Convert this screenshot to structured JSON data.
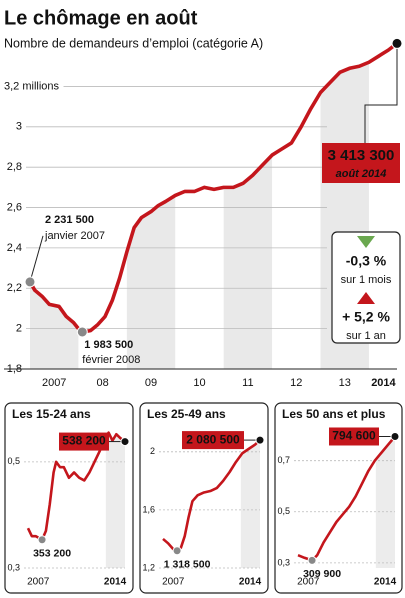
{
  "chart_data": [
    {
      "type": "line",
      "title": "Le chômage en août",
      "subtitle": "Nombre de demandeurs d’emploi (catégorie A)",
      "color": "#c4161c",
      "grid": true,
      "xlim": [
        2007,
        2014.58
      ],
      "ylim": [
        1.8,
        3.45
      ],
      "xticks": [
        {
          "value": 2007.5,
          "label": "2007"
        },
        {
          "value": 2008.5,
          "label": "08"
        },
        {
          "value": 2009.5,
          "label": "09"
        },
        {
          "value": 2010.5,
          "label": "10"
        },
        {
          "value": 2011.5,
          "label": "11"
        },
        {
          "value": 2012.5,
          "label": "12"
        },
        {
          "value": 2013.5,
          "label": "13"
        },
        {
          "value": 2014.3,
          "label": "2014"
        }
      ],
      "yticks": [
        {
          "value": 1.8,
          "label": "1,8"
        },
        2,
        {
          "value": 2.2,
          "label": "2,2"
        },
        {
          "value": 2.4,
          "label": "2,4"
        },
        {
          "value": 2.6,
          "label": "2,6"
        },
        {
          "value": 2.8,
          "label": "2,8"
        },
        3,
        {
          "value": 3.2,
          "label": "3,2 millions"
        }
      ],
      "x": [
        2007.0,
        2007.1,
        2007.25,
        2007.4,
        2007.6,
        2007.75,
        2007.9,
        2008.0,
        2008.08,
        2008.25,
        2008.4,
        2008.55,
        2008.7,
        2008.85,
        2009.0,
        2009.15,
        2009.3,
        2009.5,
        2009.65,
        2009.8,
        2010.0,
        2010.2,
        2010.4,
        2010.6,
        2010.8,
        2011.0,
        2011.2,
        2011.4,
        2011.6,
        2011.8,
        2012.0,
        2012.2,
        2012.4,
        2012.6,
        2012.8,
        2013.0,
        2013.2,
        2013.4,
        2013.6,
        2013.8,
        2014.0,
        2014.2,
        2014.4,
        2014.58
      ],
      "values": [
        2.2315,
        2.19,
        2.16,
        2.12,
        2.11,
        2.06,
        2.03,
        2.0,
        1.9835,
        1.99,
        2.02,
        2.06,
        2.14,
        2.25,
        2.38,
        2.5,
        2.55,
        2.58,
        2.61,
        2.63,
        2.66,
        2.68,
        2.68,
        2.7,
        2.69,
        2.7,
        2.7,
        2.72,
        2.76,
        2.81,
        2.86,
        2.89,
        2.92,
        3.0,
        3.09,
        3.17,
        3.22,
        3.27,
        3.29,
        3.3,
        3.32,
        3.35,
        3.38,
        3.4133
      ],
      "value_labels": [
        "2 231 500",
        null,
        null,
        null,
        null,
        null,
        null,
        null,
        "1 983 500",
        null,
        null,
        null,
        null,
        null,
        null,
        null,
        null,
        null,
        null,
        null,
        null,
        null,
        null,
        null,
        null,
        null,
        null,
        null,
        null,
        null,
        null,
        null,
        null,
        null,
        null,
        null,
        null,
        null,
        null,
        null,
        null,
        null,
        null,
        "3 413 300"
      ],
      "date_labels": [
        "janvier 2007",
        null,
        null,
        null,
        null,
        null,
        null,
        null,
        "février 2008",
        null,
        null,
        null,
        null,
        null,
        null,
        null,
        null,
        null,
        null,
        null,
        null,
        null,
        null,
        null,
        null,
        null,
        null,
        null,
        null,
        null,
        null,
        null,
        null,
        null,
        null,
        null,
        null,
        null,
        null,
        null,
        null,
        null,
        null,
        "août 2014"
      ],
      "changes": [
        {
          "value": -0.3,
          "label": "-0,3 %",
          "period": "sur 1 mois",
          "color": "#6aa84f"
        },
        {
          "value": 5.2,
          "label": "+ 5,2 %",
          "period": "sur 1 an",
          "color": "#c4161c"
        }
      ]
    },
    {
      "type": "line",
      "title": "Les 15-24 ans",
      "color": "#c4161c",
      "grid": true,
      "xlim": [
        2007,
        2014.58
      ],
      "ylim": [
        0.3,
        0.56
      ],
      "xticks": [
        {
          "value": 2007.8,
          "label": "2007"
        },
        {
          "value": 2013.8,
          "label": "2014"
        }
      ],
      "yticks": [
        {
          "value": 0.3,
          "label": "0,3"
        },
        {
          "value": 0.5,
          "label": "0,5"
        }
      ],
      "x": [
        2007.0,
        2007.3,
        2007.6,
        2008.1,
        2008.4,
        2008.7,
        2009.0,
        2009.2,
        2009.5,
        2009.8,
        2010.2,
        2010.6,
        2011.0,
        2011.4,
        2011.8,
        2012.2,
        2012.6,
        2013.0,
        2013.3,
        2013.6,
        2013.9,
        2014.2,
        2014.58
      ],
      "values": [
        0.375,
        0.36,
        0.36,
        0.3532,
        0.37,
        0.42,
        0.48,
        0.5,
        0.49,
        0.49,
        0.47,
        0.48,
        0.47,
        0.465,
        0.48,
        0.5,
        0.52,
        0.545,
        0.555,
        0.54,
        0.552,
        0.545,
        0.5382
      ],
      "value_labels": [
        null,
        null,
        null,
        "353 200",
        null,
        null,
        null,
        null,
        null,
        null,
        null,
        null,
        null,
        null,
        null,
        null,
        null,
        null,
        null,
        null,
        null,
        null,
        "538 200"
      ]
    },
    {
      "type": "line",
      "title": "Les 25-49 ans",
      "color": "#c4161c",
      "grid": true,
      "xlim": [
        2007,
        2014.58
      ],
      "ylim": [
        1.2,
        2.15
      ],
      "xticks": [
        {
          "value": 2007.8,
          "label": "2007"
        },
        {
          "value": 2013.8,
          "label": "2014"
        }
      ],
      "yticks": [
        {
          "value": 1.2,
          "label": "1,2"
        },
        {
          "value": 1.6,
          "label": "1,6"
        },
        2
      ],
      "x": [
        2007.0,
        2007.4,
        2007.8,
        2008.1,
        2008.4,
        2008.7,
        2009.0,
        2009.3,
        2009.7,
        2010.2,
        2010.7,
        2011.2,
        2011.7,
        2012.2,
        2012.7,
        2013.2,
        2013.7,
        2014.2,
        2014.58
      ],
      "values": [
        1.4,
        1.37,
        1.33,
        1.3185,
        1.34,
        1.42,
        1.55,
        1.66,
        1.7,
        1.72,
        1.73,
        1.75,
        1.8,
        1.86,
        1.93,
        1.99,
        2.02,
        2.05,
        2.0805
      ],
      "value_labels": [
        null,
        null,
        null,
        "1 318 500",
        null,
        null,
        null,
        null,
        null,
        null,
        null,
        null,
        null,
        null,
        null,
        null,
        null,
        null,
        "2 080 500"
      ]
    },
    {
      "type": "line",
      "title": "Les 50 ans et plus",
      "color": "#c4161c",
      "grid": true,
      "xlim": [
        2007,
        2014.58
      ],
      "ylim": [
        0.28,
        0.82
      ],
      "xticks": [
        {
          "value": 2007.8,
          "label": "2007"
        },
        {
          "value": 2013.8,
          "label": "2014"
        }
      ],
      "yticks": [
        {
          "value": 0.3,
          "label": "0,3"
        },
        {
          "value": 0.5,
          "label": "0,5"
        },
        {
          "value": 0.7,
          "label": "0,7"
        }
      ],
      "x": [
        2007.0,
        2007.5,
        2008.1,
        2008.5,
        2009.0,
        2009.5,
        2010.0,
        2010.5,
        2011.0,
        2011.5,
        2012.0,
        2012.5,
        2013.0,
        2013.5,
        2014.0,
        2014.58
      ],
      "values": [
        0.33,
        0.32,
        0.3099,
        0.33,
        0.38,
        0.42,
        0.46,
        0.49,
        0.52,
        0.56,
        0.61,
        0.66,
        0.7,
        0.73,
        0.76,
        0.7946
      ],
      "value_labels": [
        null,
        null,
        "309 900",
        null,
        null,
        null,
        null,
        null,
        null,
        null,
        null,
        null,
        null,
        null,
        null,
        "794 600"
      ]
    }
  ]
}
